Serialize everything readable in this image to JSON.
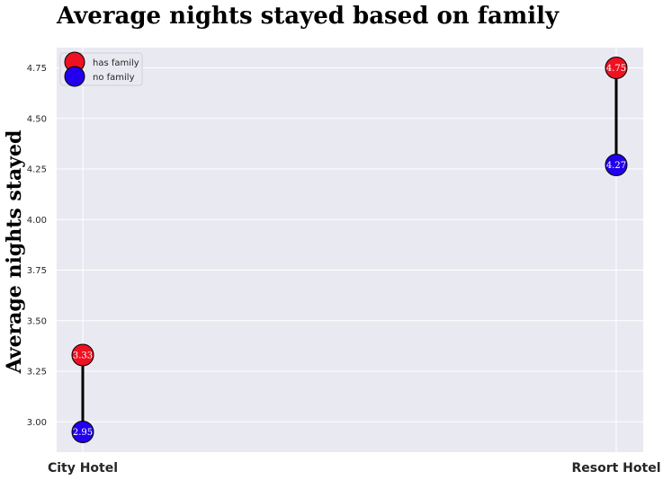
{
  "chart_data": {
    "type": "dumbbell",
    "title": "Average nights stayed based on family",
    "ylabel": "Average nights stayed",
    "xlabel": "",
    "categories": [
      "City Hotel",
      "Resort Hotel"
    ],
    "series": [
      {
        "name": "has family",
        "values": [
          3.33,
          4.75
        ],
        "color": "#ee1122"
      },
      {
        "name": "no family",
        "values": [
          2.95,
          4.27
        ],
        "color": "#2200ee"
      }
    ],
    "ylim": [
      2.85,
      4.85
    ],
    "yticks": [
      "3.00",
      "3.25",
      "3.50",
      "3.75",
      "4.00",
      "4.25",
      "4.50",
      "4.75"
    ],
    "grid": true,
    "legend_position": "top-left",
    "colors": {
      "background": "#e9e9f1",
      "grid": "#ffffff",
      "connector": "#000000"
    }
  }
}
